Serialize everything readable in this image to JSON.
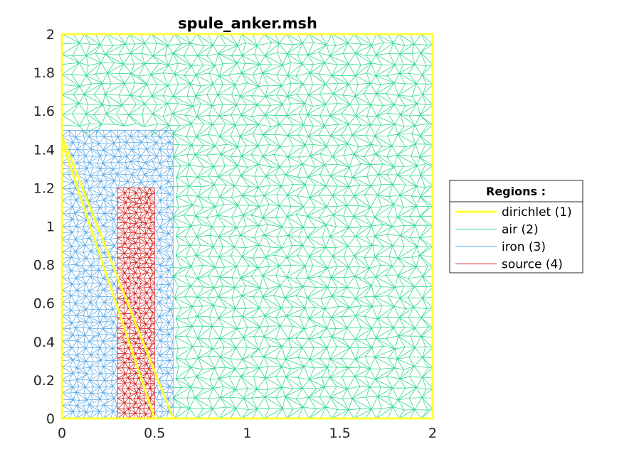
{
  "chart_data": {
    "type": "mesh",
    "title": "spule_anker.msh",
    "xlim": [
      0,
      2
    ],
    "ylim": [
      0,
      2
    ],
    "x_ticks": [
      "0",
      "0.5",
      "1",
      "1.5",
      "2"
    ],
    "y_ticks": [
      "0",
      "0.2",
      "0.4",
      "0.6",
      "0.8",
      "1",
      "1.2",
      "1.4",
      "1.6",
      "1.8",
      "2"
    ],
    "grid": false,
    "legend": {
      "title": "Regions :",
      "placement": "right",
      "entries": [
        {
          "label": "dirichlet (1)",
          "color": "#ffff33",
          "width": 3
        },
        {
          "label": "air (2)",
          "color": "#2fd98a",
          "width": 1
        },
        {
          "label": "iron (3)",
          "color": "#5aa9e8",
          "width": 1
        },
        {
          "label": "source (4)",
          "color": "#d62020",
          "width": 1
        }
      ]
    },
    "regions": [
      {
        "name": "air",
        "color": "#2fd98a",
        "polygon": [
          [
            0,
            0
          ],
          [
            2,
            0
          ],
          [
            2,
            2
          ],
          [
            0,
            2
          ]
        ],
        "h": 0.06
      },
      {
        "name": "iron",
        "color": "#5aa9e8",
        "polygon": [
          [
            0,
            0
          ],
          [
            0.6,
            0
          ],
          [
            0.6,
            1.5
          ],
          [
            0,
            1.5
          ]
        ],
        "h": 0.038
      },
      {
        "name": "source",
        "color": "#d62020",
        "polygon": [
          [
            0.3,
            0
          ],
          [
            0.5,
            0
          ],
          [
            0.5,
            1.2
          ],
          [
            0.3,
            1.2
          ]
        ],
        "h": 0.03
      }
    ],
    "dirichlet": [
      [
        [
          0,
          0
        ],
        [
          2,
          0
        ],
        [
          2,
          2
        ],
        [
          0,
          2
        ],
        [
          0,
          0
        ]
      ],
      [
        [
          0,
          1.44
        ],
        [
          0.5,
          0
        ]
      ],
      [
        [
          0,
          1.47
        ],
        [
          0.6,
          0
        ]
      ]
    ]
  }
}
